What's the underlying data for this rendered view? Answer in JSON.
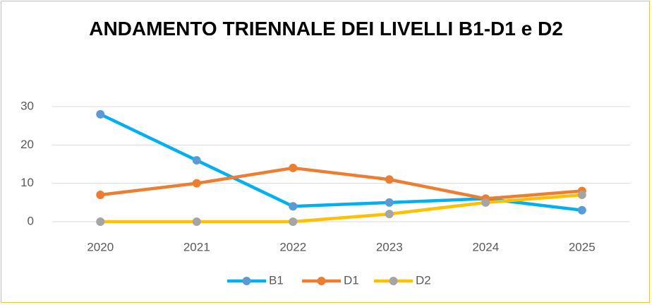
{
  "chart_data": {
    "type": "line",
    "title": "ANDAMENTO TRIENNALE DEI LIVELLI B1-D1 e D2",
    "categories": [
      "2020",
      "2021",
      "2022",
      "2023",
      "2024",
      "2025"
    ],
    "series": [
      {
        "name": "B1",
        "color": "#00b0f0",
        "marker_color": "#5b9bd5",
        "values": [
          28,
          16,
          4,
          5,
          6,
          3
        ]
      },
      {
        "name": "D1",
        "color": "#ed7d31",
        "marker_color": "#ed7d31",
        "values": [
          7,
          10,
          14,
          11,
          6,
          8
        ]
      },
      {
        "name": "D2",
        "color": "#ffc000",
        "marker_color": "#a5a5a5",
        "values": [
          0,
          0,
          0,
          2,
          5,
          7
        ]
      }
    ],
    "ylim": [
      0,
      30
    ],
    "yticks": [
      0,
      10,
      20,
      30
    ],
    "grid": true,
    "legend": "bottom"
  }
}
